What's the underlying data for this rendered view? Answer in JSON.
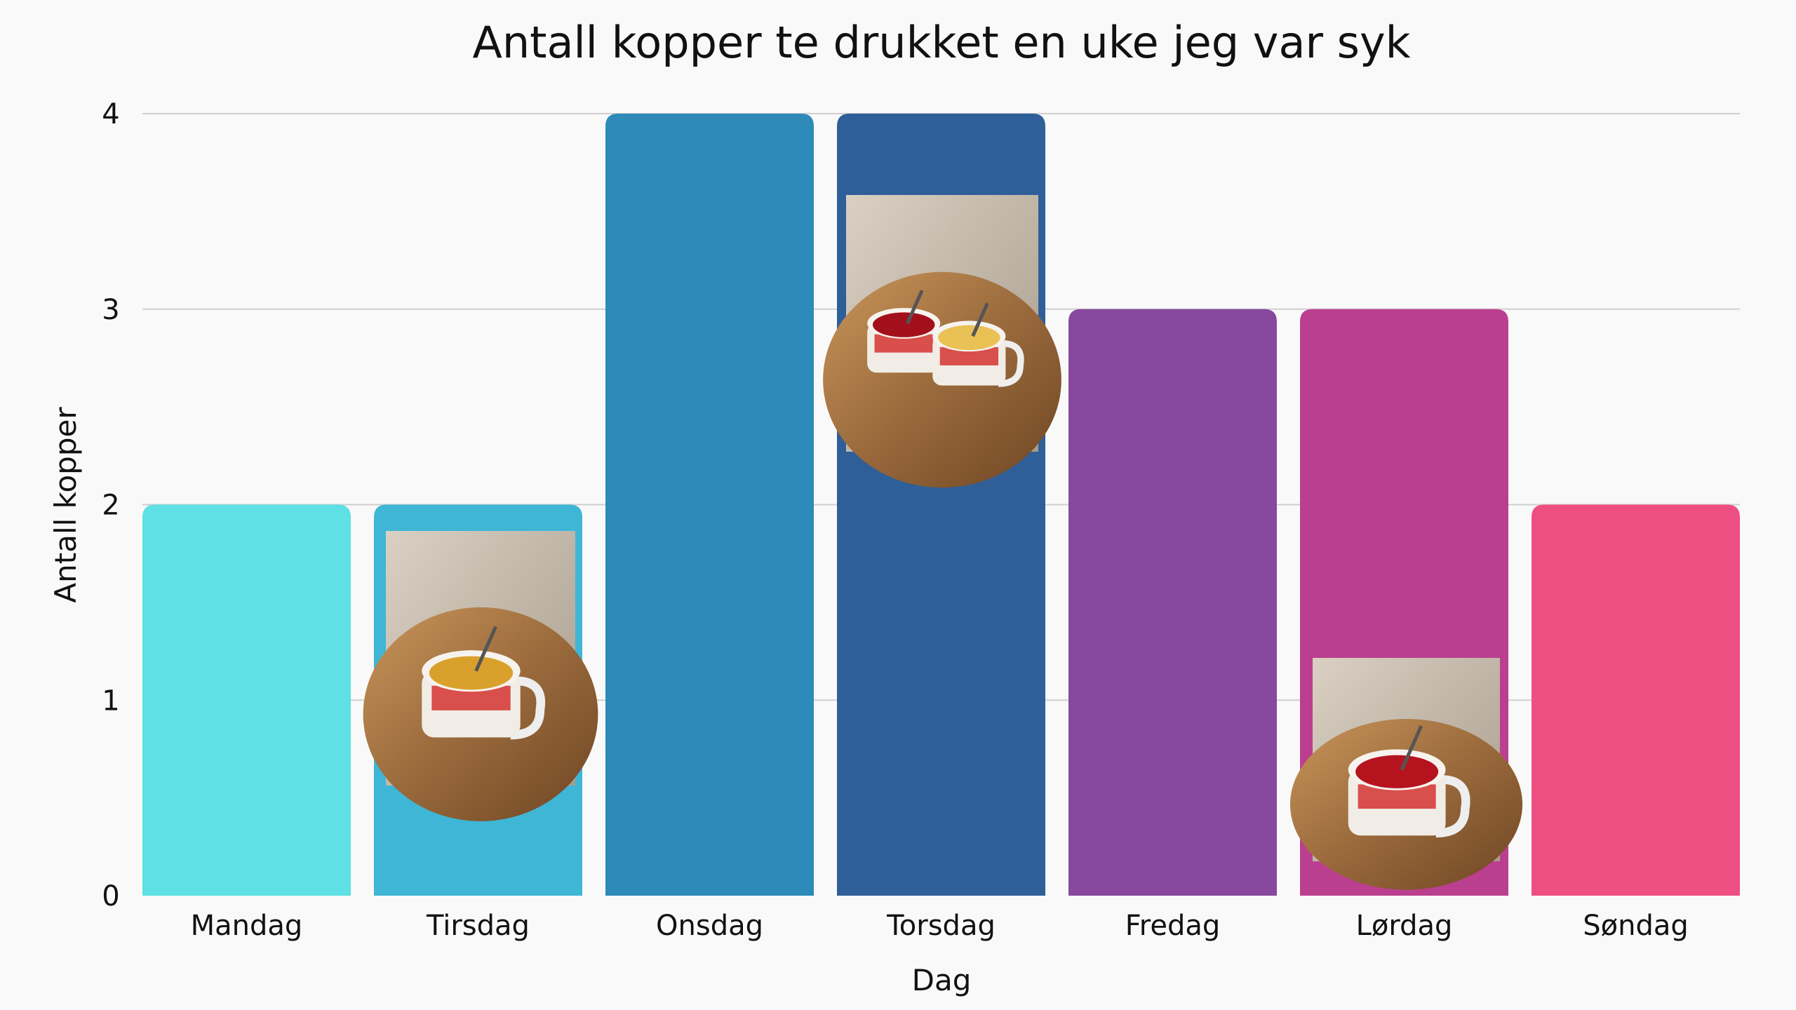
{
  "chart_data": {
    "type": "bar",
    "title": "Antall kopper te drukket en uke jeg var syk",
    "xlabel": "Dag",
    "ylabel": "Antall kopper",
    "categories": [
      "Mandag",
      "Tirsdag",
      "Onsdag",
      "Torsdag",
      "Fredag",
      "Lørdag",
      "Søndag"
    ],
    "values": [
      2,
      2,
      4,
      4,
      3,
      3,
      2
    ],
    "colors": [
      "#5ee0e4",
      "#3fb6d6",
      "#2e8ab8",
      "#2f5f98",
      "#87489e",
      "#bb3f8f",
      "#ee4f83"
    ],
    "ylim": [
      0,
      4
    ],
    "yticks": [
      0,
      1,
      2,
      3,
      4
    ],
    "grid": true,
    "photos": [
      {
        "category": "Tirsdag",
        "subject": "tea-mug-yellow-tea-icon"
      },
      {
        "category": "Torsdag",
        "subject": "two-tea-mugs-icon"
      },
      {
        "category": "Lørdag",
        "subject": "tea-mug-red-tea-icon"
      }
    ]
  }
}
